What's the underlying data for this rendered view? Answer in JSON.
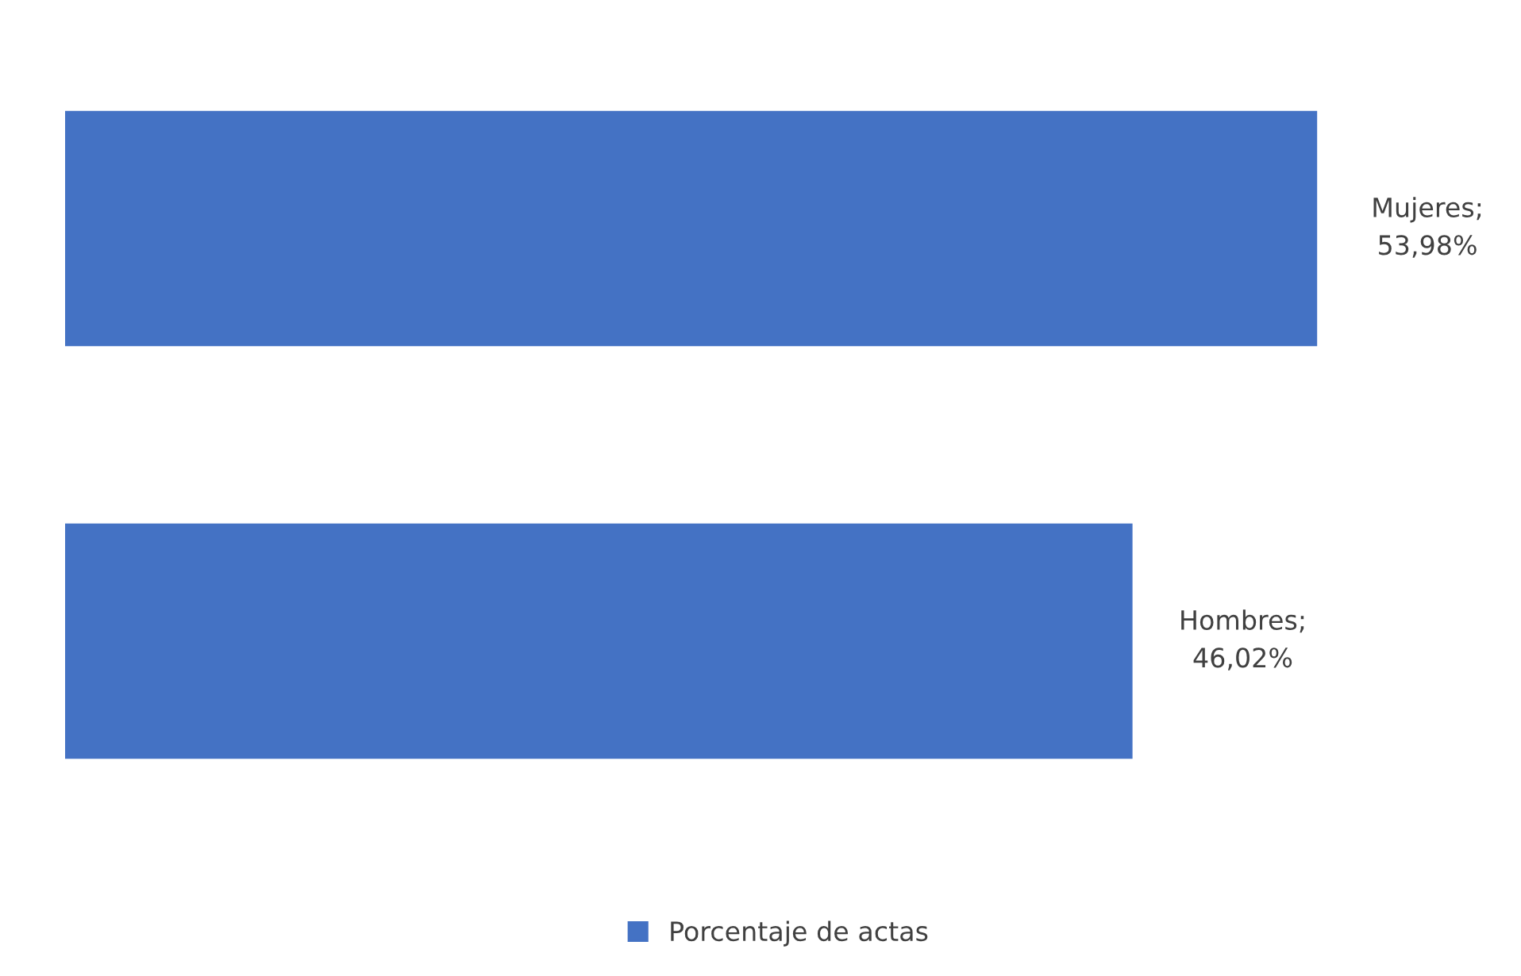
{
  "chart_data": {
    "type": "bar",
    "orientation": "horizontal",
    "categories": [
      null,
      null
    ],
    "series": [
      {
        "name": "Porcentaje de actas",
        "color": "#4472c4",
        "values": [
          53.98,
          46.02
        ],
        "value_labels": [
          "Mujeres;\n53,98%",
          "Hombres;\n46,02%"
        ]
      }
    ],
    "tick_labels": false,
    "grid": false,
    "legend": "bottom"
  }
}
